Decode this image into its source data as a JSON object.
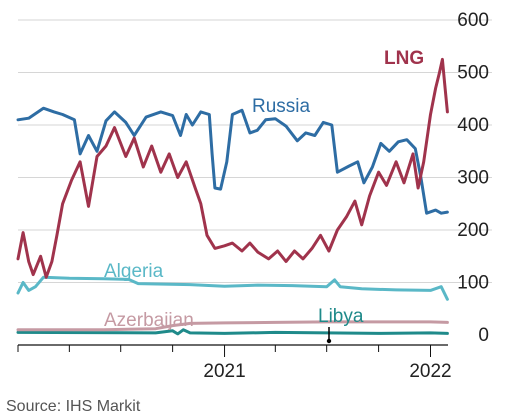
{
  "chart_data": {
    "type": "line",
    "source": "Source: IHS Markit",
    "ylim": [
      0,
      600
    ],
    "y_ticks": [
      0,
      100,
      200,
      300,
      400,
      500,
      600
    ],
    "x_range": [
      "2020-01-01",
      "2022-02-01"
    ],
    "x_ticks": [
      {
        "date": "2020-01-01",
        "label": ""
      },
      {
        "date": "2020-04-01",
        "label": ""
      },
      {
        "date": "2020-07-01",
        "label": ""
      },
      {
        "date": "2020-10-01",
        "label": ""
      },
      {
        "date": "2021-01-01",
        "label": "2021"
      },
      {
        "date": "2021-04-01",
        "label": ""
      },
      {
        "date": "2021-07-01",
        "label": ""
      },
      {
        "date": "2021-10-01",
        "label": ""
      },
      {
        "date": "2022-01-01",
        "label": "2022"
      }
    ],
    "grid": true,
    "series": [
      {
        "name": "Russia",
        "color": "#2e6da4",
        "points": [
          [
            "2020-01-01",
            410
          ],
          [
            "2020-01-20",
            413
          ],
          [
            "2020-02-15",
            432
          ],
          [
            "2020-03-05",
            425
          ],
          [
            "2020-03-20",
            420
          ],
          [
            "2020-04-10",
            410
          ],
          [
            "2020-04-20",
            345
          ],
          [
            "2020-05-05",
            380
          ],
          [
            "2020-05-20",
            350
          ],
          [
            "2020-06-05",
            408
          ],
          [
            "2020-06-20",
            425
          ],
          [
            "2020-07-10",
            405
          ],
          [
            "2020-07-25",
            380
          ],
          [
            "2020-08-15",
            415
          ],
          [
            "2020-09-10",
            425
          ],
          [
            "2020-10-01",
            418
          ],
          [
            "2020-10-15",
            380
          ],
          [
            "2020-10-25",
            420
          ],
          [
            "2020-11-05",
            400
          ],
          [
            "2020-11-20",
            425
          ],
          [
            "2020-12-05",
            420
          ],
          [
            "2020-12-10",
            345
          ],
          [
            "2020-12-15",
            280
          ],
          [
            "2020-12-25",
            278
          ],
          [
            "2021-01-05",
            330
          ],
          [
            "2021-01-15",
            420
          ],
          [
            "2021-02-01",
            428
          ],
          [
            "2021-02-15",
            385
          ],
          [
            "2021-02-28",
            390
          ],
          [
            "2021-03-15",
            410
          ],
          [
            "2021-04-01",
            412
          ],
          [
            "2021-04-20",
            398
          ],
          [
            "2021-05-10",
            370
          ],
          [
            "2021-05-25",
            385
          ],
          [
            "2021-06-10",
            380
          ],
          [
            "2021-06-25",
            405
          ],
          [
            "2021-07-10",
            400
          ],
          [
            "2021-07-20",
            310
          ],
          [
            "2021-08-10",
            322
          ],
          [
            "2021-08-25",
            330
          ],
          [
            "2021-09-05",
            290
          ],
          [
            "2021-09-20",
            320
          ],
          [
            "2021-10-05",
            365
          ],
          [
            "2021-10-20",
            350
          ],
          [
            "2021-11-05",
            368
          ],
          [
            "2021-11-20",
            372
          ],
          [
            "2021-12-05",
            355
          ],
          [
            "2021-12-15",
            300
          ],
          [
            "2021-12-25",
            232
          ],
          [
            "2022-01-10",
            238
          ],
          [
            "2022-01-20",
            232
          ],
          [
            "2022-01-31",
            234
          ]
        ]
      },
      {
        "name": "LNG",
        "color": "#a0334c",
        "points": [
          [
            "2020-01-01",
            145
          ],
          [
            "2020-01-10",
            195
          ],
          [
            "2020-01-20",
            140
          ],
          [
            "2020-01-28",
            115
          ],
          [
            "2020-02-10",
            150
          ],
          [
            "2020-02-20",
            110
          ],
          [
            "2020-03-01",
            140
          ],
          [
            "2020-03-10",
            190
          ],
          [
            "2020-03-20",
            250
          ],
          [
            "2020-04-05",
            295
          ],
          [
            "2020-04-20",
            330
          ],
          [
            "2020-05-05",
            245
          ],
          [
            "2020-05-20",
            340
          ],
          [
            "2020-06-05",
            360
          ],
          [
            "2020-06-20",
            395
          ],
          [
            "2020-07-10",
            340
          ],
          [
            "2020-07-25",
            375
          ],
          [
            "2020-08-10",
            320
          ],
          [
            "2020-08-25",
            360
          ],
          [
            "2020-09-10",
            310
          ],
          [
            "2020-09-25",
            345
          ],
          [
            "2020-10-10",
            300
          ],
          [
            "2020-10-25",
            330
          ],
          [
            "2020-11-10",
            280
          ],
          [
            "2020-11-20",
            250
          ],
          [
            "2020-12-01",
            190
          ],
          [
            "2020-12-15",
            165
          ],
          [
            "2021-01-01",
            170
          ],
          [
            "2021-01-15",
            175
          ],
          [
            "2021-02-01",
            160
          ],
          [
            "2021-02-15",
            175
          ],
          [
            "2021-03-01",
            158
          ],
          [
            "2021-03-20",
            145
          ],
          [
            "2021-04-05",
            160
          ],
          [
            "2021-04-20",
            140
          ],
          [
            "2021-05-05",
            160
          ],
          [
            "2021-05-20",
            145
          ],
          [
            "2021-06-05",
            165
          ],
          [
            "2021-06-20",
            190
          ],
          [
            "2021-07-05",
            160
          ],
          [
            "2021-07-20",
            200
          ],
          [
            "2021-08-05",
            225
          ],
          [
            "2021-08-20",
            255
          ],
          [
            "2021-09-01",
            210
          ],
          [
            "2021-09-15",
            265
          ],
          [
            "2021-10-01",
            310
          ],
          [
            "2021-10-15",
            285
          ],
          [
            "2021-11-01",
            330
          ],
          [
            "2021-11-15",
            290
          ],
          [
            "2021-12-01",
            345
          ],
          [
            "2021-12-10",
            280
          ],
          [
            "2021-12-20",
            330
          ],
          [
            "2022-01-01",
            420
          ],
          [
            "2022-01-10",
            470
          ],
          [
            "2022-01-17",
            500
          ],
          [
            "2022-01-22",
            525
          ],
          [
            "2022-01-26",
            480
          ],
          [
            "2022-01-31",
            425
          ]
        ]
      },
      {
        "name": "Algeria",
        "color": "#5ab8c7",
        "points": [
          [
            "2020-01-01",
            80
          ],
          [
            "2020-01-10",
            100
          ],
          [
            "2020-01-20",
            85
          ],
          [
            "2020-02-01",
            92
          ],
          [
            "2020-02-15",
            110
          ],
          [
            "2020-04-01",
            108
          ],
          [
            "2020-06-01",
            107
          ],
          [
            "2020-07-15",
            106
          ],
          [
            "2020-08-01",
            98
          ],
          [
            "2020-09-15",
            97
          ],
          [
            "2020-11-01",
            96
          ],
          [
            "2021-01-01",
            93
          ],
          [
            "2021-03-01",
            95
          ],
          [
            "2021-05-01",
            94
          ],
          [
            "2021-07-01",
            92
          ],
          [
            "2021-07-15",
            105
          ],
          [
            "2021-07-25",
            92
          ],
          [
            "2021-09-01",
            88
          ],
          [
            "2021-11-01",
            86
          ],
          [
            "2022-01-01",
            85
          ],
          [
            "2022-01-20",
            92
          ],
          [
            "2022-01-31",
            68
          ]
        ]
      },
      {
        "name": "Azerbaijan",
        "color": "#c59aa3",
        "points": [
          [
            "2020-01-01",
            10
          ],
          [
            "2020-06-01",
            10
          ],
          [
            "2020-09-01",
            12
          ],
          [
            "2020-10-01",
            18
          ],
          [
            "2020-11-01",
            22
          ],
          [
            "2021-01-01",
            23
          ],
          [
            "2021-04-01",
            24
          ],
          [
            "2021-07-01",
            25
          ],
          [
            "2021-10-01",
            25
          ],
          [
            "2022-01-01",
            25
          ],
          [
            "2022-01-31",
            24
          ]
        ]
      },
      {
        "name": "Libya",
        "color": "#1f8a8a",
        "points": [
          [
            "2020-01-01",
            5
          ],
          [
            "2020-09-01",
            4
          ],
          [
            "2020-10-01",
            8
          ],
          [
            "2020-10-10",
            2
          ],
          [
            "2020-10-20",
            10
          ],
          [
            "2020-11-01",
            4
          ],
          [
            "2021-01-01",
            3
          ],
          [
            "2021-04-01",
            5
          ],
          [
            "2021-07-01",
            4
          ],
          [
            "2021-10-01",
            3
          ],
          [
            "2022-01-01",
            4
          ],
          [
            "2022-01-31",
            3
          ]
        ]
      }
    ]
  }
}
